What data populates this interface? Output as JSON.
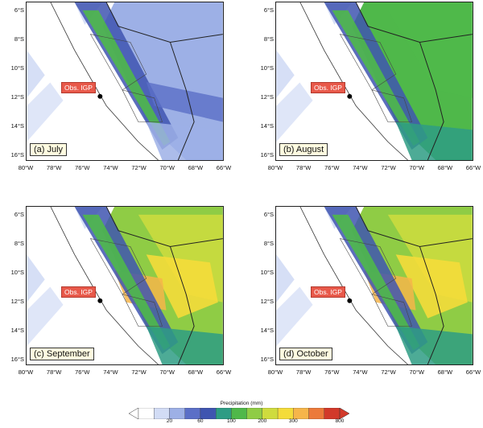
{
  "panels": [
    {
      "caption": "(a) July",
      "intensity": 0.25
    },
    {
      "caption": "(b) August",
      "intensity": 0.55
    },
    {
      "caption": "(c) September",
      "intensity": 0.8
    },
    {
      "caption": "(d) October",
      "intensity": 0.85
    }
  ],
  "station_label": "Obs. IGP",
  "lat_labels": [
    "6°S",
    "8°S",
    "10°S",
    "12°S",
    "14°S",
    "16°S"
  ],
  "lon_labels": [
    "80°W",
    "78°W",
    "76°W",
    "74°W",
    "72°W",
    "70°W",
    "68°W",
    "66°W"
  ],
  "legend": {
    "title": "Precipitation (mm)",
    "ticks": [
      "20",
      "60",
      "100",
      "200",
      "300",
      "800"
    ],
    "colors": [
      "#ffffff",
      "#d2dcf5",
      "#9db0e6",
      "#5b6fc7",
      "#3f55b0",
      "#2e9c84",
      "#4fb84a",
      "#8fcc45",
      "#cfdc3e",
      "#f4dc3a",
      "#f6b54a",
      "#ec7a3a",
      "#d2392a"
    ]
  }
}
